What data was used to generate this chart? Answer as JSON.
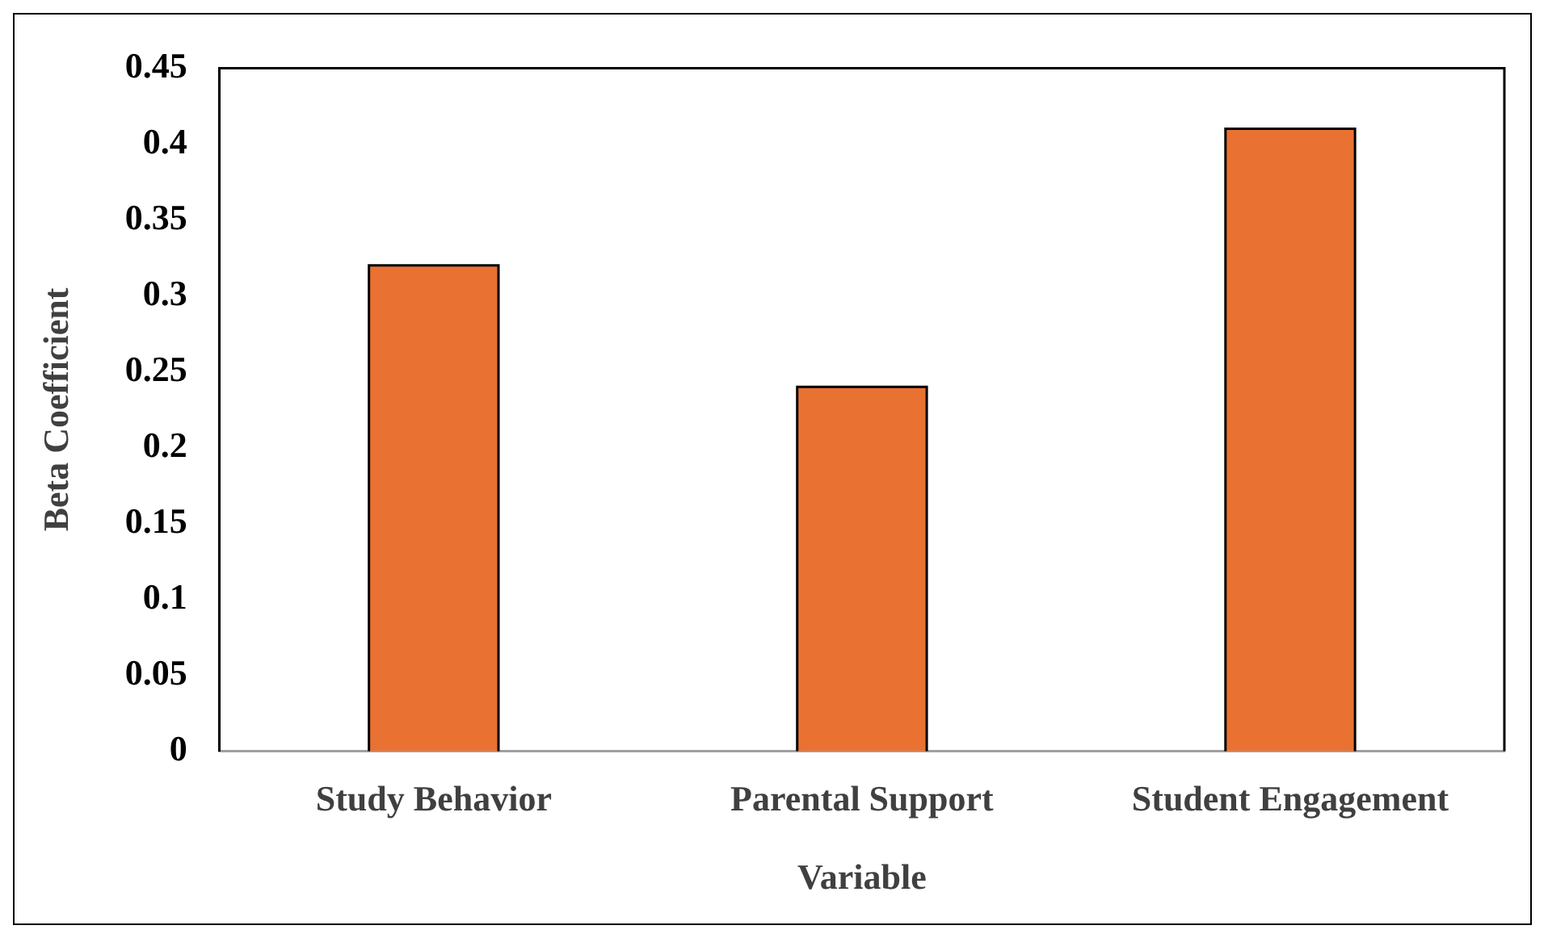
{
  "chart_data": {
    "type": "bar",
    "xlabel": "Variable",
    "ylabel": "Beta Coefficient",
    "categories": [
      "Study Behavior",
      "Parental Support",
      "Student Engagement"
    ],
    "values": [
      0.32,
      0.24,
      0.41
    ],
    "color": "#e97132",
    "ylim": [
      0,
      0.45
    ],
    "yticks": [
      0,
      0.05,
      0.1,
      0.15,
      0.2,
      0.25,
      0.3,
      0.35,
      0.4,
      0.45
    ],
    "grid": false,
    "legend": false
  }
}
